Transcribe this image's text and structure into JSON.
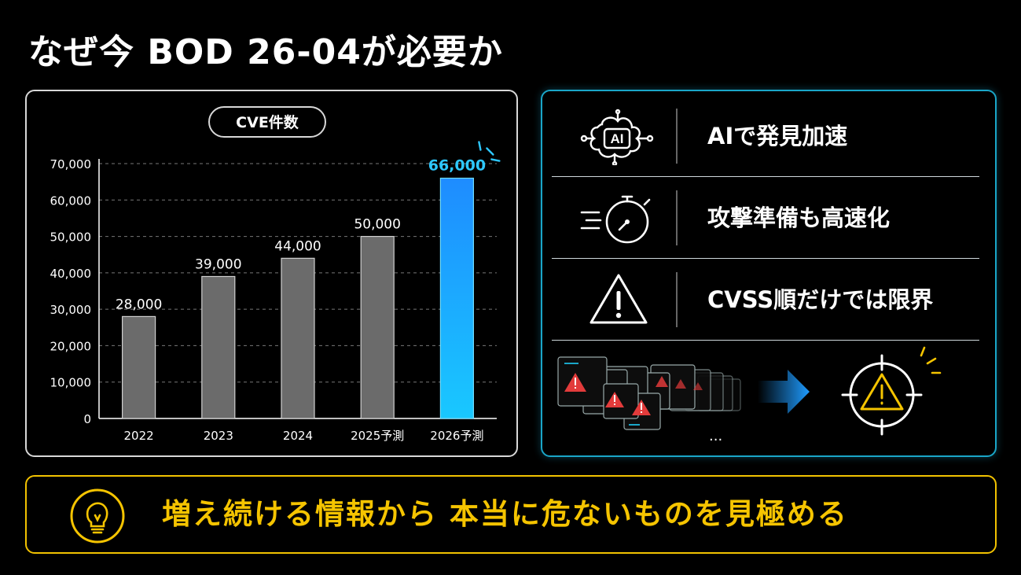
{
  "title": "なぜ今 BOD 26-04が必要か",
  "chart_data": {
    "type": "bar",
    "title": "CVE件数",
    "categories": [
      "2022",
      "2023",
      "2024",
      "2025予測",
      "2026予測"
    ],
    "values": [
      28000,
      39000,
      44000,
      50000,
      66000
    ],
    "value_labels": [
      "28,000",
      "39,000",
      "44,000",
      "50,000",
      "66,000"
    ],
    "ylim": [
      0,
      70000
    ],
    "yticks": [
      0,
      10000,
      20000,
      30000,
      40000,
      50000,
      60000,
      70000
    ],
    "ytick_labels": [
      "0",
      "10,000",
      "20,000",
      "30,000",
      "40,000",
      "50,000",
      "60,000",
      "70,000"
    ],
    "grid": true,
    "colors": [
      "#6b6b6b",
      "#6b6b6b",
      "#6b6b6b",
      "#6b6b6b",
      "#1e9bff"
    ],
    "highlight_label_color": "#2ec8ff"
  },
  "factors": [
    {
      "icon": "ai-brain-icon",
      "label": "AIで発見加速"
    },
    {
      "icon": "stopwatch-icon",
      "label": "攻撃準備も高速化"
    },
    {
      "icon": "warning-triangle-icon",
      "label": "CVSS順だけでは限界"
    }
  ],
  "illustration": {
    "ellipsis": "...",
    "left_icon": "stacked-alert-windows-icon",
    "arrow_icon": "right-arrow-icon",
    "right_icon": "target-warning-icon"
  },
  "banner": {
    "icon": "lightbulb-icon",
    "text": "増え続ける情報から 本当に危ないものを見極める"
  },
  "colors": {
    "accent_blue": "#1aa6c8",
    "accent_yellow": "#f5c400",
    "warning_red": "#e23b3b"
  }
}
